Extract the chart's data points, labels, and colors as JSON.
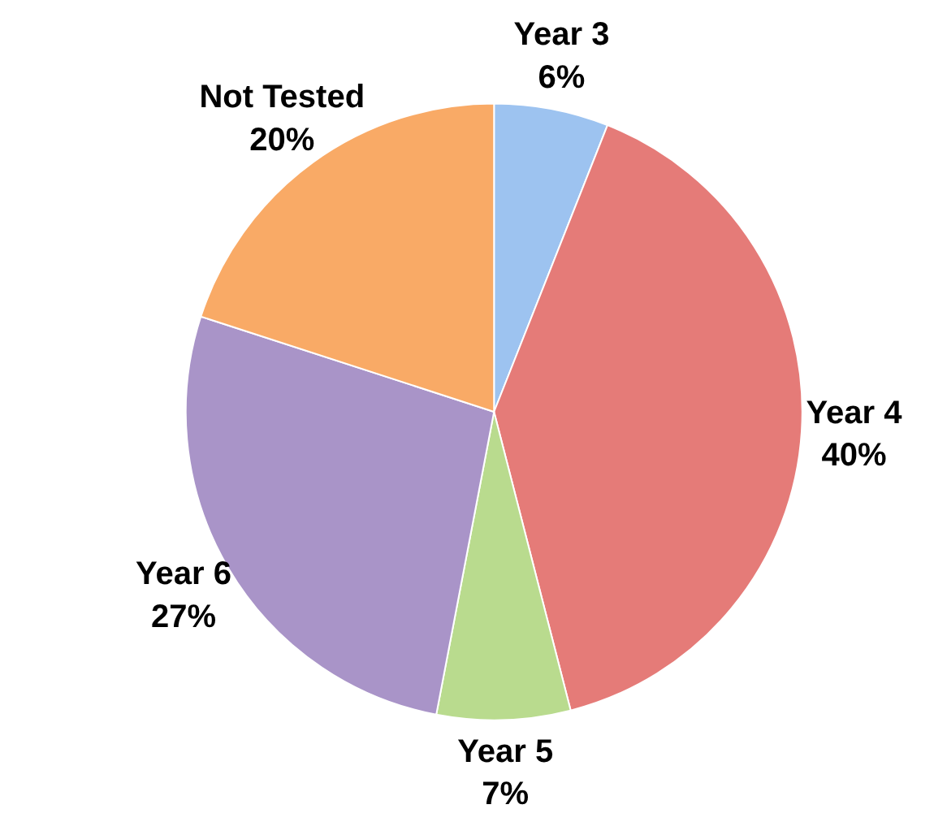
{
  "chart_data": {
    "type": "pie",
    "categories": [
      "Year 3",
      "Year 4",
      "Year 5",
      "Year 6",
      "Not Tested"
    ],
    "values": [
      6,
      40,
      7,
      27,
      20
    ],
    "colors": [
      "#9dc3f0",
      "#e57b78",
      "#b9db8e",
      "#a994c8",
      "#f9aa66"
    ],
    "value_labels": [
      "6%",
      "40%",
      "7%",
      "27%",
      "20%"
    ]
  }
}
